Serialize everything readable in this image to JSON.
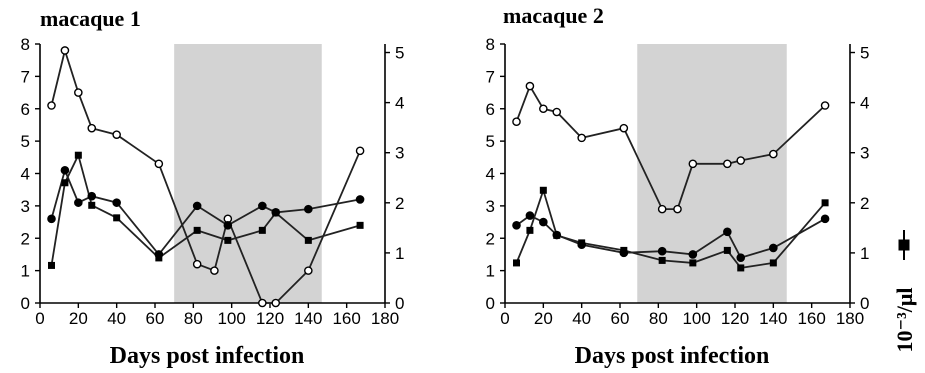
{
  "colors": {
    "shade": "#d3d3d3",
    "ink": "#000000"
  },
  "legend": {
    "unit": "10⁻³/μl",
    "marker": "filled-square-with-line"
  },
  "chart_data": [
    {
      "type": "line",
      "title": "macaque 1",
      "xlabel": "Days post infection",
      "xlim": [
        0,
        180
      ],
      "xticks": [
        0,
        20,
        40,
        60,
        80,
        100,
        120,
        140,
        160,
        180
      ],
      "ylim_left": [
        0,
        8
      ],
      "yticks_left": [
        0,
        1,
        2,
        3,
        4,
        5,
        6,
        7,
        8
      ],
      "ylim_right": [
        0,
        5.17
      ],
      "yticks_right": [
        0,
        1,
        2,
        3,
        4,
        5
      ],
      "shaded_interval": [
        70,
        147
      ],
      "grid": false,
      "series": [
        {
          "marker": "open-circle",
          "axis": "left",
          "x": [
            6,
            13,
            20,
            27,
            40,
            62,
            82,
            91,
            98,
            116,
            123,
            140,
            167
          ],
          "y": [
            6.1,
            7.8,
            6.5,
            5.4,
            5.2,
            4.3,
            1.2,
            1.0,
            2.6,
            0.0,
            0.0,
            1.0,
            4.7
          ]
        },
        {
          "marker": "filled-circle",
          "axis": "left",
          "x": [
            6,
            13,
            20,
            27,
            40,
            62,
            82,
            98,
            116,
            123,
            140,
            167
          ],
          "y": [
            2.6,
            4.1,
            3.1,
            3.3,
            3.1,
            1.5,
            3.0,
            2.4,
            3.0,
            2.8,
            2.9,
            3.2
          ]
        },
        {
          "marker": "square",
          "axis": "right",
          "x": [
            6,
            13,
            20,
            27,
            40,
            62,
            82,
            98,
            116,
            123,
            140,
            167
          ],
          "y": [
            0.75,
            2.4,
            2.95,
            1.95,
            1.7,
            0.9,
            1.45,
            1.25,
            1.45,
            1.8,
            1.25,
            1.55
          ]
        }
      ]
    },
    {
      "type": "line",
      "title": "macaque 2",
      "xlabel": "Days post infection",
      "xlim": [
        0,
        180
      ],
      "xticks": [
        0,
        20,
        40,
        60,
        80,
        100,
        120,
        140,
        160,
        180
      ],
      "ylim_left": [
        0,
        8
      ],
      "yticks_left": [
        0,
        1,
        2,
        3,
        4,
        5,
        6,
        7,
        8
      ],
      "ylim_right": [
        0,
        5.17
      ],
      "yticks_right": [
        0,
        1,
        2,
        3,
        4,
        5
      ],
      "shaded_interval": [
        69,
        147
      ],
      "grid": false,
      "series": [
        {
          "marker": "open-circle",
          "axis": "left",
          "x": [
            6,
            13,
            20,
            27,
            40,
            62,
            82,
            90,
            98,
            116,
            123,
            140,
            167
          ],
          "y": [
            5.6,
            6.7,
            6.0,
            5.9,
            5.1,
            5.4,
            2.9,
            2.9,
            4.3,
            4.3,
            4.4,
            4.6,
            6.1
          ]
        },
        {
          "marker": "filled-circle",
          "axis": "left",
          "x": [
            6,
            13,
            20,
            27,
            40,
            62,
            82,
            98,
            116,
            123,
            140,
            167
          ],
          "y": [
            2.4,
            2.7,
            2.5,
            2.1,
            1.8,
            1.55,
            1.6,
            1.5,
            2.2,
            1.4,
            1.7,
            2.6
          ]
        },
        {
          "marker": "square",
          "axis": "right",
          "x": [
            6,
            13,
            20,
            27,
            40,
            62,
            82,
            98,
            116,
            123,
            140,
            167
          ],
          "y": [
            0.8,
            1.45,
            2.25,
            1.35,
            1.2,
            1.05,
            0.85,
            0.8,
            1.05,
            0.7,
            0.8,
            2.0
          ]
        }
      ]
    }
  ]
}
